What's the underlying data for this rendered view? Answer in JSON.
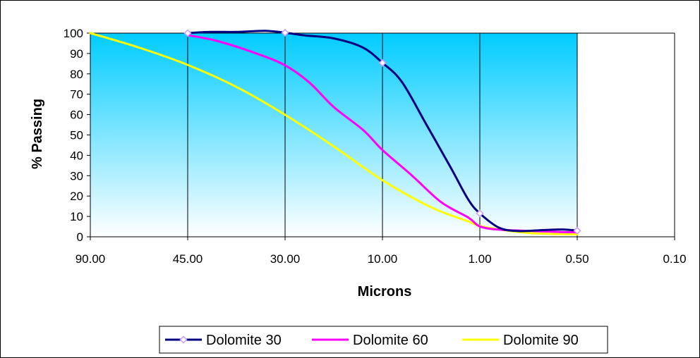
{
  "chart_data": {
    "type": "line",
    "title": "",
    "xlabel": "Microns",
    "ylabel": "% Passing",
    "x_categories": [
      "90.00",
      "45.00",
      "30.00",
      "10.00",
      "1.00",
      "0.50",
      "0.10"
    ],
    "x_scale": "categorical, evenly spaced tick positions, values decrease left to right",
    "ylim": [
      0,
      100
    ],
    "y_ticks": [
      "0",
      "10",
      "20",
      "30",
      "40",
      "50",
      "60",
      "70",
      "80",
      "90",
      "100"
    ],
    "grid": "vertical gridlines at each x tick plus a top border line",
    "plot_background": "gradient from #00ccff at top to #ffffff at bottom",
    "legend_position": "bottom",
    "series": [
      {
        "name": "Dolomite 30",
        "color": "#000080",
        "marker": "diamond",
        "marker_color": "#cc99ff",
        "x": [
          1.0,
          1.23,
          1.5,
          1.8,
          2.0,
          2.2,
          2.5,
          2.8,
          3.0,
          3.2,
          3.45,
          3.7,
          3.88,
          4.0,
          4.2,
          4.4,
          4.65,
          4.85,
          5.0
        ],
        "y": [
          100,
          100.6,
          100.6,
          101.1,
          100.2,
          98.9,
          97.4,
          92.9,
          85.4,
          76,
          55.2,
          34.1,
          18.4,
          11.5,
          4.4,
          2.8,
          3.3,
          3.6,
          3
        ],
        "marker_indices": [
          0,
          4,
          8,
          13,
          18
        ]
      },
      {
        "name": "Dolomite 60",
        "color": "#ff00ff",
        "marker": "none",
        "x": [
          1.0,
          1.3,
          1.7,
          2.0,
          2.25,
          2.5,
          2.8,
          3.0,
          3.3,
          3.6,
          3.88,
          4.0,
          4.2,
          4.5,
          4.8,
          5.0
        ],
        "y": [
          99,
          96.2,
          90.1,
          84.2,
          75.7,
          63.7,
          52.5,
          42.6,
          30.2,
          17.1,
          9.5,
          5.1,
          3.5,
          2.9,
          2.4,
          2.2
        ]
      },
      {
        "name": "Dolomite 90",
        "color": "#ffff00",
        "marker": "none",
        "x": [
          0.0,
          0.5,
          1.0,
          1.5,
          2.0,
          2.5,
          3.0,
          3.5,
          3.88,
          4.0,
          4.3,
          4.6,
          5.0
        ],
        "y": [
          100,
          92.9,
          84.4,
          73.6,
          59.9,
          44.4,
          27.8,
          14.5,
          7.6,
          5.4,
          2.9,
          1.6,
          1.2
        ]
      }
    ]
  }
}
